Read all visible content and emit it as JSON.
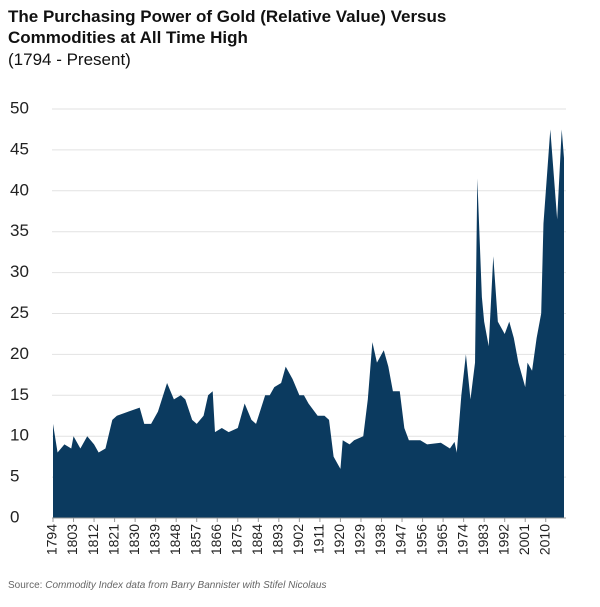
{
  "chart_data": {
    "type": "area",
    "title": "The Purchasing Power of Gold (Relative Value) Versus Commodities at All Time High",
    "subtitle": "(1794 - Present)",
    "source_label": "Source:",
    "source": "Commodity Index data from Barry Bannister with Stifel Nicolaus",
    "color": "#0b3a5f",
    "grid": true,
    "x": [
      1794,
      1796,
      1799,
      1802,
      1803,
      1806,
      1809,
      1812,
      1814,
      1817,
      1820,
      1822,
      1827,
      1832,
      1834,
      1837,
      1840,
      1844,
      1847,
      1850,
      1852,
      1855,
      1857,
      1860,
      1862,
      1864,
      1865,
      1868,
      1871,
      1875,
      1878,
      1881,
      1883,
      1887,
      1889,
      1891,
      1894,
      1896,
      1899,
      1902,
      1904,
      1906,
      1910,
      1913,
      1915,
      1917,
      1919,
      1920,
      1921,
      1924,
      1926,
      1930,
      1932,
      1934,
      1936,
      1939,
      1941,
      1943,
      1946,
      1948,
      1950,
      1955,
      1958,
      1964,
      1968,
      1970,
      1971,
      1973,
      1975,
      1977,
      1979,
      1980,
      1982,
      1983,
      1985,
      1987,
      1989,
      1992,
      1994,
      1996,
      1998,
      2001,
      2002,
      2004,
      2006,
      2008,
      2009,
      2012,
      2015,
      2017,
      2018
    ],
    "values": [
      11.5,
      8,
      9,
      8.5,
      10,
      8.5,
      10,
      9,
      8,
      8.5,
      12,
      12.5,
      13,
      13.5,
      11.5,
      11.5,
      13,
      16.5,
      14.5,
      15,
      14.5,
      12,
      11.5,
      12.5,
      15,
      15.5,
      10.5,
      11,
      10.5,
      11,
      14,
      12,
      11.5,
      15,
      15,
      16,
      16.5,
      18.5,
      17,
      15,
      15,
      14,
      12.5,
      12.5,
      12,
      7.5,
      6.5,
      6,
      9.5,
      9,
      9.5,
      10,
      14.5,
      21.5,
      19,
      20.5,
      18.5,
      15.5,
      15.5,
      11,
      9.5,
      9.5,
      9,
      9.2,
      8.5,
      9.3,
      8,
      15,
      20,
      14.5,
      19,
      41.5,
      27,
      24,
      21,
      32,
      24,
      22.5,
      24,
      22,
      19,
      16,
      19,
      18,
      22,
      25,
      36,
      47.5,
      36.5,
      47.5,
      44
    ],
    "xlim": [
      1794,
      2018
    ],
    "xticks": [
      1794,
      1803,
      1812,
      1821,
      1830,
      1839,
      1848,
      1857,
      1866,
      1875,
      1884,
      1893,
      1902,
      1911,
      1920,
      1929,
      1938,
      1947,
      1956,
      1965,
      1974,
      1983,
      1992,
      2001,
      2010
    ],
    "ylim": [
      0,
      50
    ],
    "yticks": [
      0,
      5,
      10,
      15,
      20,
      25,
      30,
      35,
      40,
      45,
      50
    ]
  }
}
